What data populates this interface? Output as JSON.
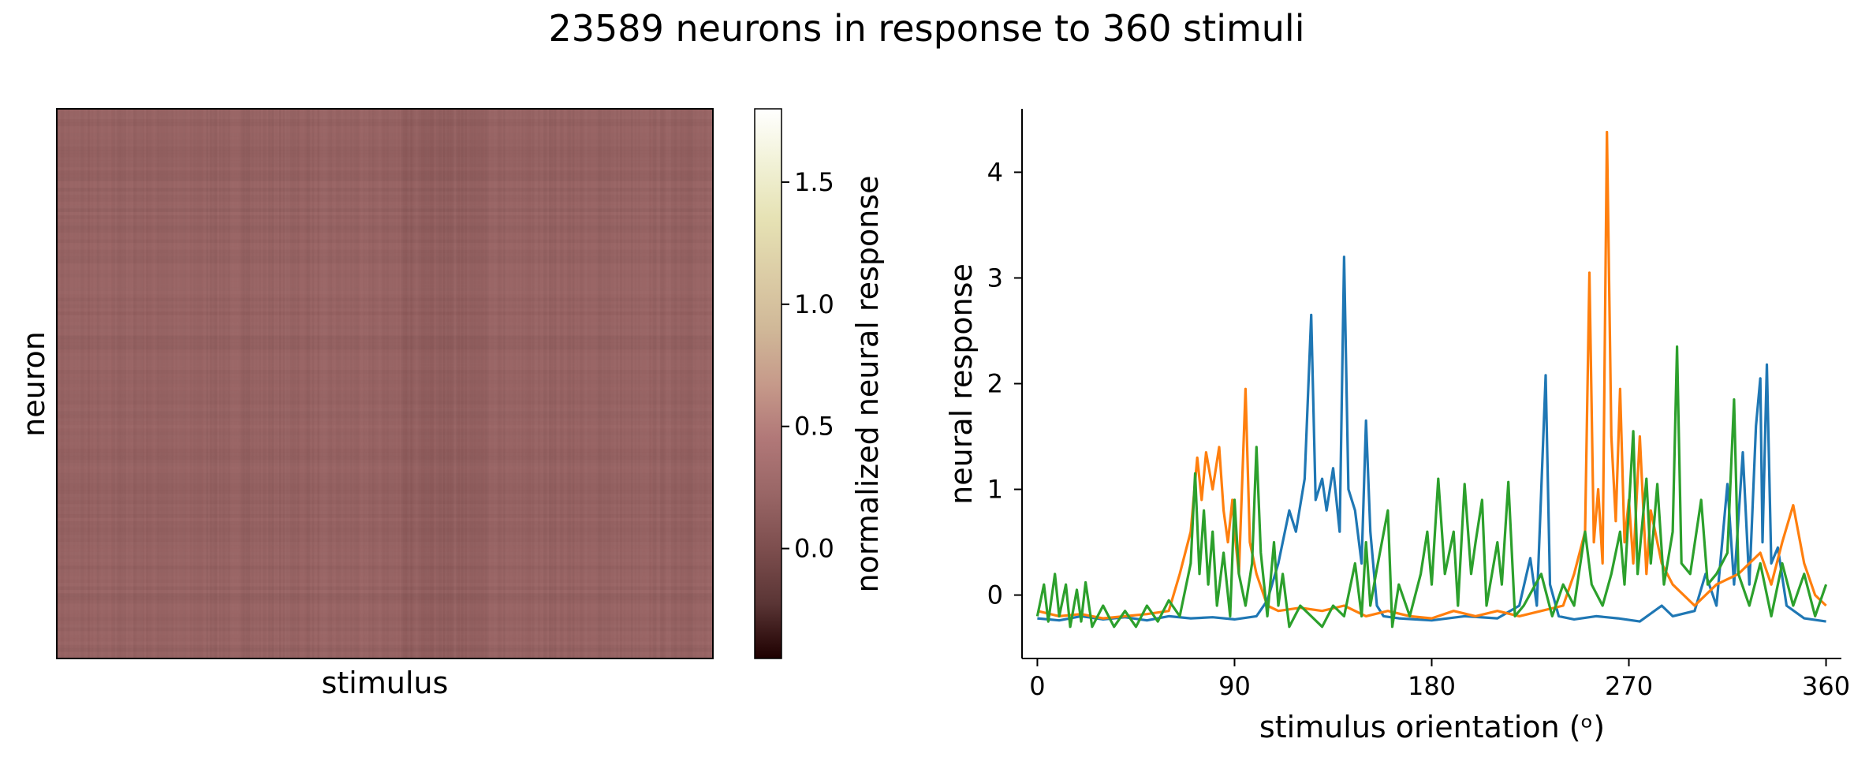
{
  "figure": {
    "suptitle": "23589 neurons in response to 360 stimuli"
  },
  "chart_data": [
    {
      "type": "heatmap",
      "xlabel": "stimulus",
      "ylabel": "neuron",
      "colorbar": {
        "label": "normalized neural response",
        "range": [
          -0.45,
          1.8
        ],
        "ticks": [
          0.0,
          0.5,
          1.0,
          1.5
        ],
        "tick_labels": [
          "0.0",
          "0.5",
          "1.0",
          "1.5"
        ],
        "colormap": "pink"
      },
      "rows": 23589,
      "columns": 360,
      "typical_value": 0.2,
      "dark_stimulus_band": [
        190,
        235
      ]
    },
    {
      "type": "line",
      "xlabel": "stimulus orientation (ᵒ)",
      "ylabel": "neural response",
      "xlim": [
        -7,
        367
      ],
      "ylim": [
        -0.6,
        4.6
      ],
      "xticks": [
        0,
        90,
        180,
        270,
        360
      ],
      "xtick_labels": [
        "0",
        "90",
        "180",
        "270",
        "360"
      ],
      "yticks": [
        0,
        1,
        2,
        3,
        4
      ],
      "ytick_labels": [
        "0",
        "1",
        "2",
        "3",
        "4"
      ],
      "grid": false,
      "legend": "none",
      "series": [
        {
          "color": "#1f77b4",
          "points": [
            [
              0,
              -0.22
            ],
            [
              10,
              -0.24
            ],
            [
              20,
              -0.2
            ],
            [
              30,
              -0.23
            ],
            [
              40,
              -0.21
            ],
            [
              50,
              -0.24
            ],
            [
              60,
              -0.2
            ],
            [
              70,
              -0.22
            ],
            [
              80,
              -0.21
            ],
            [
              90,
              -0.23
            ],
            [
              100,
              -0.2
            ],
            [
              105,
              -0.05
            ],
            [
              110,
              0.3
            ],
            [
              115,
              0.8
            ],
            [
              118,
              0.6
            ],
            [
              122,
              1.1
            ],
            [
              125,
              2.65
            ],
            [
              127,
              0.9
            ],
            [
              130,
              1.1
            ],
            [
              132,
              0.8
            ],
            [
              135,
              1.2
            ],
            [
              138,
              0.6
            ],
            [
              140,
              3.2
            ],
            [
              142,
              1.0
            ],
            [
              145,
              0.8
            ],
            [
              148,
              0.3
            ],
            [
              150,
              1.65
            ],
            [
              152,
              0.6
            ],
            [
              155,
              -0.1
            ],
            [
              158,
              -0.2
            ],
            [
              165,
              -0.22
            ],
            [
              180,
              -0.24
            ],
            [
              195,
              -0.2
            ],
            [
              210,
              -0.22
            ],
            [
              220,
              -0.1
            ],
            [
              225,
              0.35
            ],
            [
              228,
              -0.1
            ],
            [
              232,
              2.08
            ],
            [
              234,
              0.1
            ],
            [
              238,
              -0.2
            ],
            [
              245,
              -0.23
            ],
            [
              255,
              -0.2
            ],
            [
              265,
              -0.22
            ],
            [
              275,
              -0.25
            ],
            [
              285,
              -0.1
            ],
            [
              290,
              -0.2
            ],
            [
              300,
              -0.15
            ],
            [
              305,
              0.2
            ],
            [
              310,
              -0.1
            ],
            [
              315,
              1.05
            ],
            [
              318,
              0.1
            ],
            [
              322,
              1.35
            ],
            [
              325,
              0.1
            ],
            [
              328,
              1.6
            ],
            [
              330,
              2.05
            ],
            [
              331,
              0.5
            ],
            [
              333,
              2.18
            ],
            [
              335,
              0.3
            ],
            [
              338,
              0.45
            ],
            [
              342,
              -0.1
            ],
            [
              350,
              -0.22
            ],
            [
              360,
              -0.25
            ]
          ]
        },
        {
          "color": "#ff7f0e",
          "points": [
            [
              0,
              -0.15
            ],
            [
              10,
              -0.2
            ],
            [
              20,
              -0.18
            ],
            [
              30,
              -0.22
            ],
            [
              40,
              -0.2
            ],
            [
              50,
              -0.18
            ],
            [
              60,
              -0.15
            ],
            [
              65,
              0.2
            ],
            [
              70,
              0.6
            ],
            [
              73,
              1.3
            ],
            [
              75,
              0.9
            ],
            [
              77,
              1.35
            ],
            [
              80,
              1.0
            ],
            [
              83,
              1.4
            ],
            [
              85,
              0.8
            ],
            [
              87,
              0.5
            ],
            [
              89,
              0.9
            ],
            [
              90,
              0.6
            ],
            [
              92,
              0.2
            ],
            [
              95,
              1.95
            ],
            [
              97,
              0.5
            ],
            [
              100,
              0.2
            ],
            [
              105,
              -0.1
            ],
            [
              110,
              -0.15
            ],
            [
              120,
              -0.12
            ],
            [
              130,
              -0.15
            ],
            [
              140,
              -0.1
            ],
            [
              150,
              -0.2
            ],
            [
              160,
              -0.15
            ],
            [
              170,
              -0.2
            ],
            [
              180,
              -0.22
            ],
            [
              190,
              -0.15
            ],
            [
              200,
              -0.2
            ],
            [
              210,
              -0.15
            ],
            [
              220,
              -0.2
            ],
            [
              230,
              -0.15
            ],
            [
              240,
              -0.1
            ],
            [
              245,
              0.2
            ],
            [
              250,
              0.6
            ],
            [
              252,
              3.05
            ],
            [
              254,
              0.5
            ],
            [
              256,
              1.0
            ],
            [
              258,
              0.3
            ],
            [
              260,
              4.38
            ],
            [
              262,
              1.5
            ],
            [
              264,
              0.7
            ],
            [
              266,
              1.95
            ],
            [
              268,
              0.5
            ],
            [
              270,
              0.9
            ],
            [
              272,
              0.3
            ],
            [
              275,
              1.5
            ],
            [
              278,
              0.2
            ],
            [
              280,
              0.8
            ],
            [
              285,
              0.3
            ],
            [
              290,
              0.1
            ],
            [
              300,
              -0.1
            ],
            [
              310,
              0.1
            ],
            [
              320,
              0.2
            ],
            [
              330,
              0.4
            ],
            [
              335,
              0.1
            ],
            [
              340,
              0.5
            ],
            [
              345,
              0.85
            ],
            [
              350,
              0.3
            ],
            [
              355,
              0.0
            ],
            [
              360,
              -0.1
            ]
          ]
        },
        {
          "color": "#2ca02c",
          "points": [
            [
              0,
              -0.2
            ],
            [
              3,
              0.1
            ],
            [
              5,
              -0.25
            ],
            [
              8,
              0.2
            ],
            [
              10,
              -0.2
            ],
            [
              13,
              0.1
            ],
            [
              15,
              -0.3
            ],
            [
              18,
              0.05
            ],
            [
              20,
              -0.25
            ],
            [
              22,
              0.12
            ],
            [
              25,
              -0.3
            ],
            [
              30,
              -0.1
            ],
            [
              35,
              -0.3
            ],
            [
              40,
              -0.15
            ],
            [
              45,
              -0.3
            ],
            [
              50,
              -0.1
            ],
            [
              55,
              -0.25
            ],
            [
              60,
              -0.05
            ],
            [
              65,
              -0.2
            ],
            [
              70,
              0.3
            ],
            [
              72,
              1.15
            ],
            [
              74,
              0.2
            ],
            [
              76,
              0.8
            ],
            [
              78,
              0.1
            ],
            [
              80,
              0.6
            ],
            [
              82,
              -0.1
            ],
            [
              85,
              0.4
            ],
            [
              88,
              -0.2
            ],
            [
              90,
              0.9
            ],
            [
              92,
              0.2
            ],
            [
              95,
              -0.1
            ],
            [
              98,
              0.3
            ],
            [
              100,
              1.4
            ],
            [
              102,
              0.4
            ],
            [
              105,
              -0.2
            ],
            [
              108,
              0.5
            ],
            [
              110,
              -0.1
            ],
            [
              112,
              0.2
            ],
            [
              115,
              -0.3
            ],
            [
              120,
              -0.1
            ],
            [
              125,
              -0.2
            ],
            [
              130,
              -0.3
            ],
            [
              135,
              -0.1
            ],
            [
              140,
              -0.2
            ],
            [
              145,
              0.3
            ],
            [
              148,
              -0.2
            ],
            [
              150,
              0.5
            ],
            [
              152,
              -0.1
            ],
            [
              155,
              0.25
            ],
            [
              160,
              0.8
            ],
            [
              162,
              -0.3
            ],
            [
              165,
              0.1
            ],
            [
              170,
              -0.2
            ],
            [
              175,
              0.2
            ],
            [
              178,
              0.6
            ],
            [
              180,
              0.1
            ],
            [
              183,
              1.1
            ],
            [
              186,
              0.2
            ],
            [
              190,
              0.6
            ],
            [
              192,
              -0.1
            ],
            [
              195,
              1.05
            ],
            [
              198,
              0.2
            ],
            [
              200,
              0.5
            ],
            [
              203,
              0.9
            ],
            [
              205,
              -0.1
            ],
            [
              210,
              0.5
            ],
            [
              212,
              0.1
            ],
            [
              215,
              1.07
            ],
            [
              218,
              -0.2
            ],
            [
              222,
              -0.1
            ],
            [
              230,
              0.2
            ],
            [
              235,
              -0.2
            ],
            [
              240,
              0.1
            ],
            [
              245,
              -0.1
            ],
            [
              250,
              0.6
            ],
            [
              253,
              0.1
            ],
            [
              258,
              -0.1
            ],
            [
              262,
              0.2
            ],
            [
              266,
              0.6
            ],
            [
              268,
              0.1
            ],
            [
              272,
              1.55
            ],
            [
              274,
              0.2
            ],
            [
              278,
              1.1
            ],
            [
              280,
              0.3
            ],
            [
              283,
              1.05
            ],
            [
              286,
              0.1
            ],
            [
              290,
              0.6
            ],
            [
              292,
              2.35
            ],
            [
              294,
              0.3
            ],
            [
              298,
              0.2
            ],
            [
              303,
              0.9
            ],
            [
              306,
              0.1
            ],
            [
              310,
              0.2
            ],
            [
              315,
              0.4
            ],
            [
              318,
              1.85
            ],
            [
              320,
              0.2
            ],
            [
              325,
              -0.1
            ],
            [
              330,
              0.3
            ],
            [
              335,
              -0.2
            ],
            [
              340,
              0.3
            ],
            [
              345,
              -0.1
            ],
            [
              350,
              0.2
            ],
            [
              355,
              -0.2
            ],
            [
              360,
              0.1
            ]
          ]
        }
      ]
    }
  ]
}
